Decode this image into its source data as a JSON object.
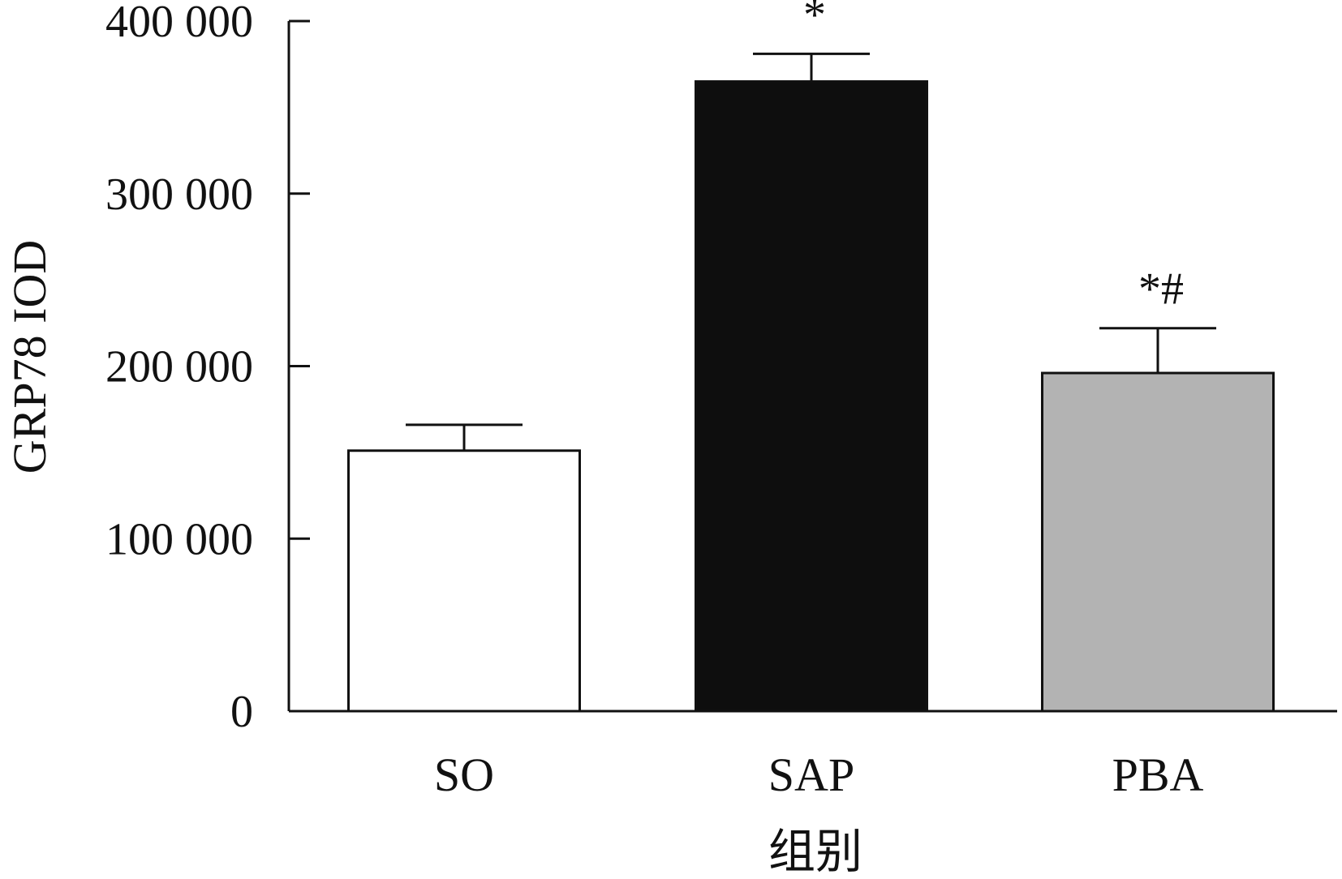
{
  "chart_data": {
    "type": "bar",
    "title": "",
    "xlabel": "组别",
    "ylabel": "GRP78 IOD",
    "ylim": [
      0,
      400000
    ],
    "yticks": [
      0,
      100000,
      200000,
      300000,
      400000
    ],
    "ytick_labels": [
      "0",
      "100 000",
      "200 000",
      "300 000",
      "400 000"
    ],
    "grid": false,
    "legend": "none",
    "categories": [
      "SO",
      "SAP",
      "PBA"
    ],
    "values": [
      151000,
      365000,
      196000
    ],
    "error_upper": [
      166000,
      381000,
      222000
    ],
    "annotations": [
      "",
      "*",
      "*#"
    ],
    "bar_fills": [
      "#ffffff",
      "#0e0e0e",
      "#b3b3b3"
    ],
    "bar_stroke": "#111111"
  }
}
